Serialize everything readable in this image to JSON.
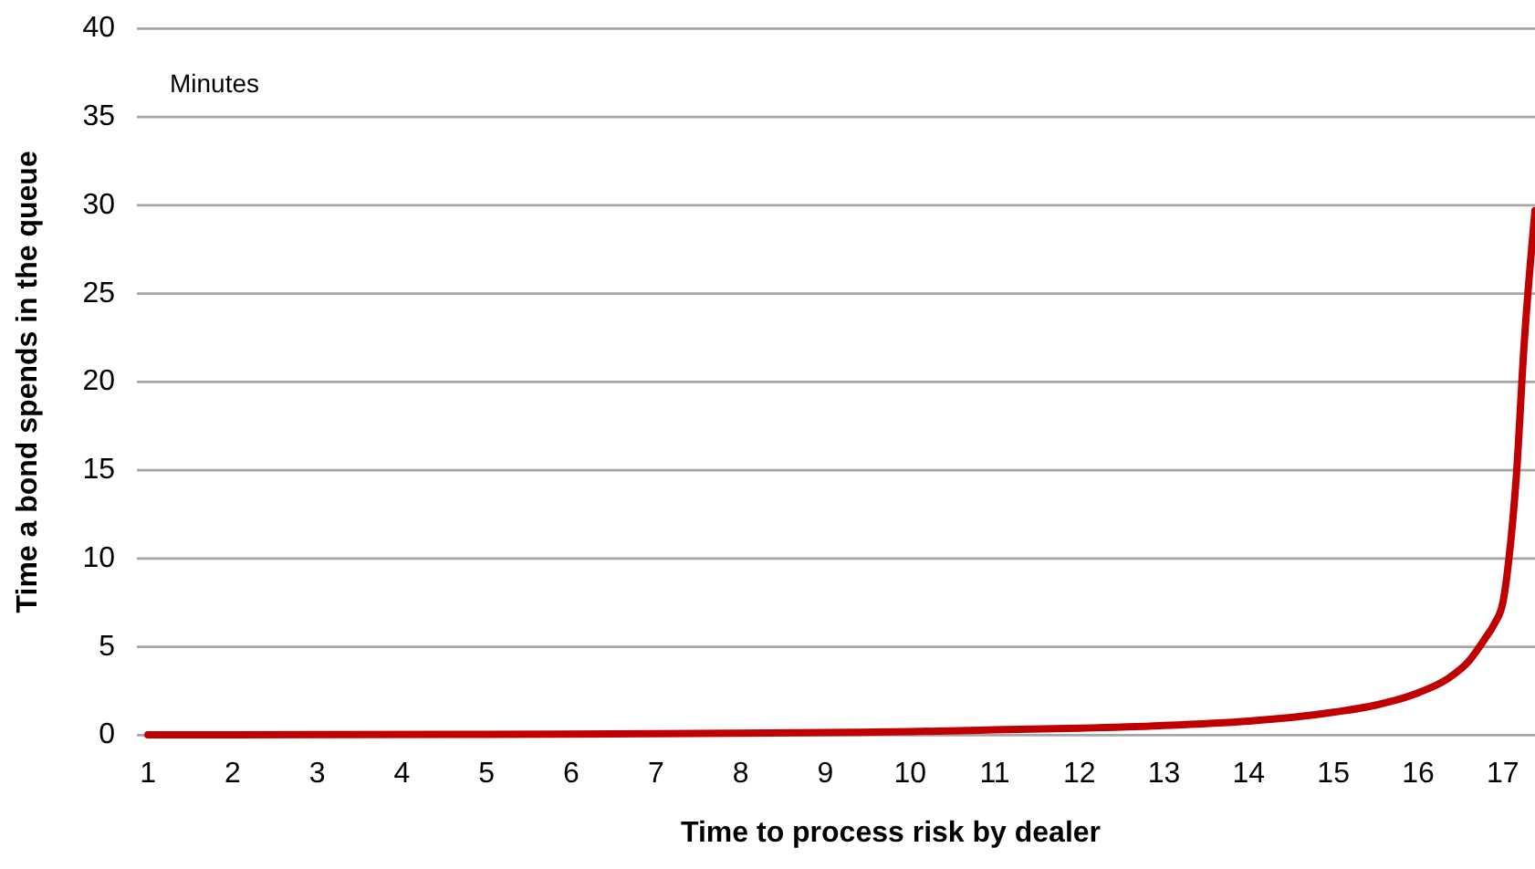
{
  "chart_data": {
    "type": "line",
    "xlabel": "Time to process risk by dealer",
    "ylabel": "Time a bond spends in the queue",
    "annotations": [
      "Minutes"
    ],
    "xlim": [
      0.87,
      17.38
    ],
    "xticks": [
      1,
      2,
      3,
      4,
      5,
      6,
      7,
      8,
      9,
      10,
      11,
      12,
      13,
      14,
      15,
      16,
      17
    ],
    "ylim": [
      0,
      40
    ],
    "yticks": [
      0,
      5,
      10,
      15,
      20,
      25,
      30,
      35,
      40
    ],
    "grid": "y",
    "marker": "none",
    "line_style": "solid",
    "series": [
      {
        "color": "#c00000",
        "x": [
          1,
          3,
          5,
          7,
          9,
          10,
          11,
          12,
          13,
          14,
          14.5,
          15,
          15.5,
          16,
          16.35,
          16.6,
          16.78,
          16.9,
          17,
          17.07,
          17.16,
          17.25,
          17.38
        ],
        "values": [
          0.02,
          0.03,
          0.05,
          0.08,
          0.15,
          0.2,
          0.3,
          0.4,
          0.55,
          0.8,
          1.0,
          1.3,
          1.7,
          2.4,
          3.2,
          4.2,
          5.4,
          6.3,
          7.5,
          9.9,
          14.7,
          22,
          29.7
        ]
      }
    ]
  }
}
